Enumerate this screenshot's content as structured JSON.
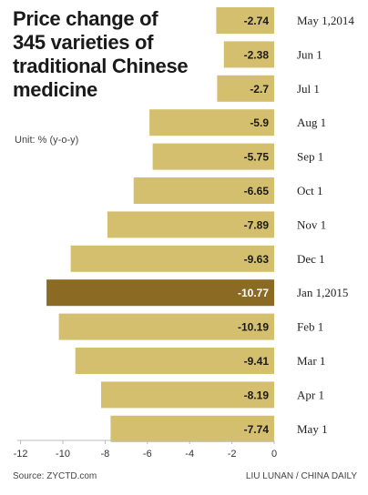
{
  "title": "Price change of 345 varieties of traditional Chinese medicine",
  "unit": "Unit: % (y-o-y)",
  "source": "Source: ZYCTD.com",
  "credit": "LIU LUNAN / CHINA DAILY",
  "colors": {
    "bar": "#d4bf6e",
    "highlight": "#8b6a24",
    "label_dark": "#1a1a1a",
    "label_light": "#ffffff"
  },
  "chart_data": {
    "type": "bar",
    "orientation": "horizontal",
    "categories": [
      "May 1,2014",
      "Jun 1",
      "Jul 1",
      "Aug 1",
      "Sep 1",
      "Oct 1",
      "Nov 1",
      "Dec 1",
      "Jan 1,2015",
      "Feb 1",
      "Mar 1",
      "Apr 1",
      "May 1"
    ],
    "values": [
      -2.74,
      -2.38,
      -2.7,
      -5.9,
      -5.75,
      -6.65,
      -7.89,
      -9.63,
      -10.77,
      -10.19,
      -9.41,
      -8.19,
      -7.74
    ],
    "value_labels": [
      "-2.74",
      "-2.38",
      "-2.7",
      "-5.9",
      "-5.75",
      "-6.65",
      "-7.89",
      "-9.63",
      "-10.77",
      "-10.19",
      "-9.41",
      "-8.19",
      "-7.74"
    ],
    "highlight_index": 8,
    "xlim": [
      -12,
      0
    ],
    "xticks": [
      -12,
      -10,
      -8,
      -6,
      -4,
      -2,
      0
    ],
    "xtick_labels": [
      "-12",
      "-10",
      "-8",
      "-6",
      "-4",
      "-2",
      "0"
    ],
    "grid": false
  }
}
